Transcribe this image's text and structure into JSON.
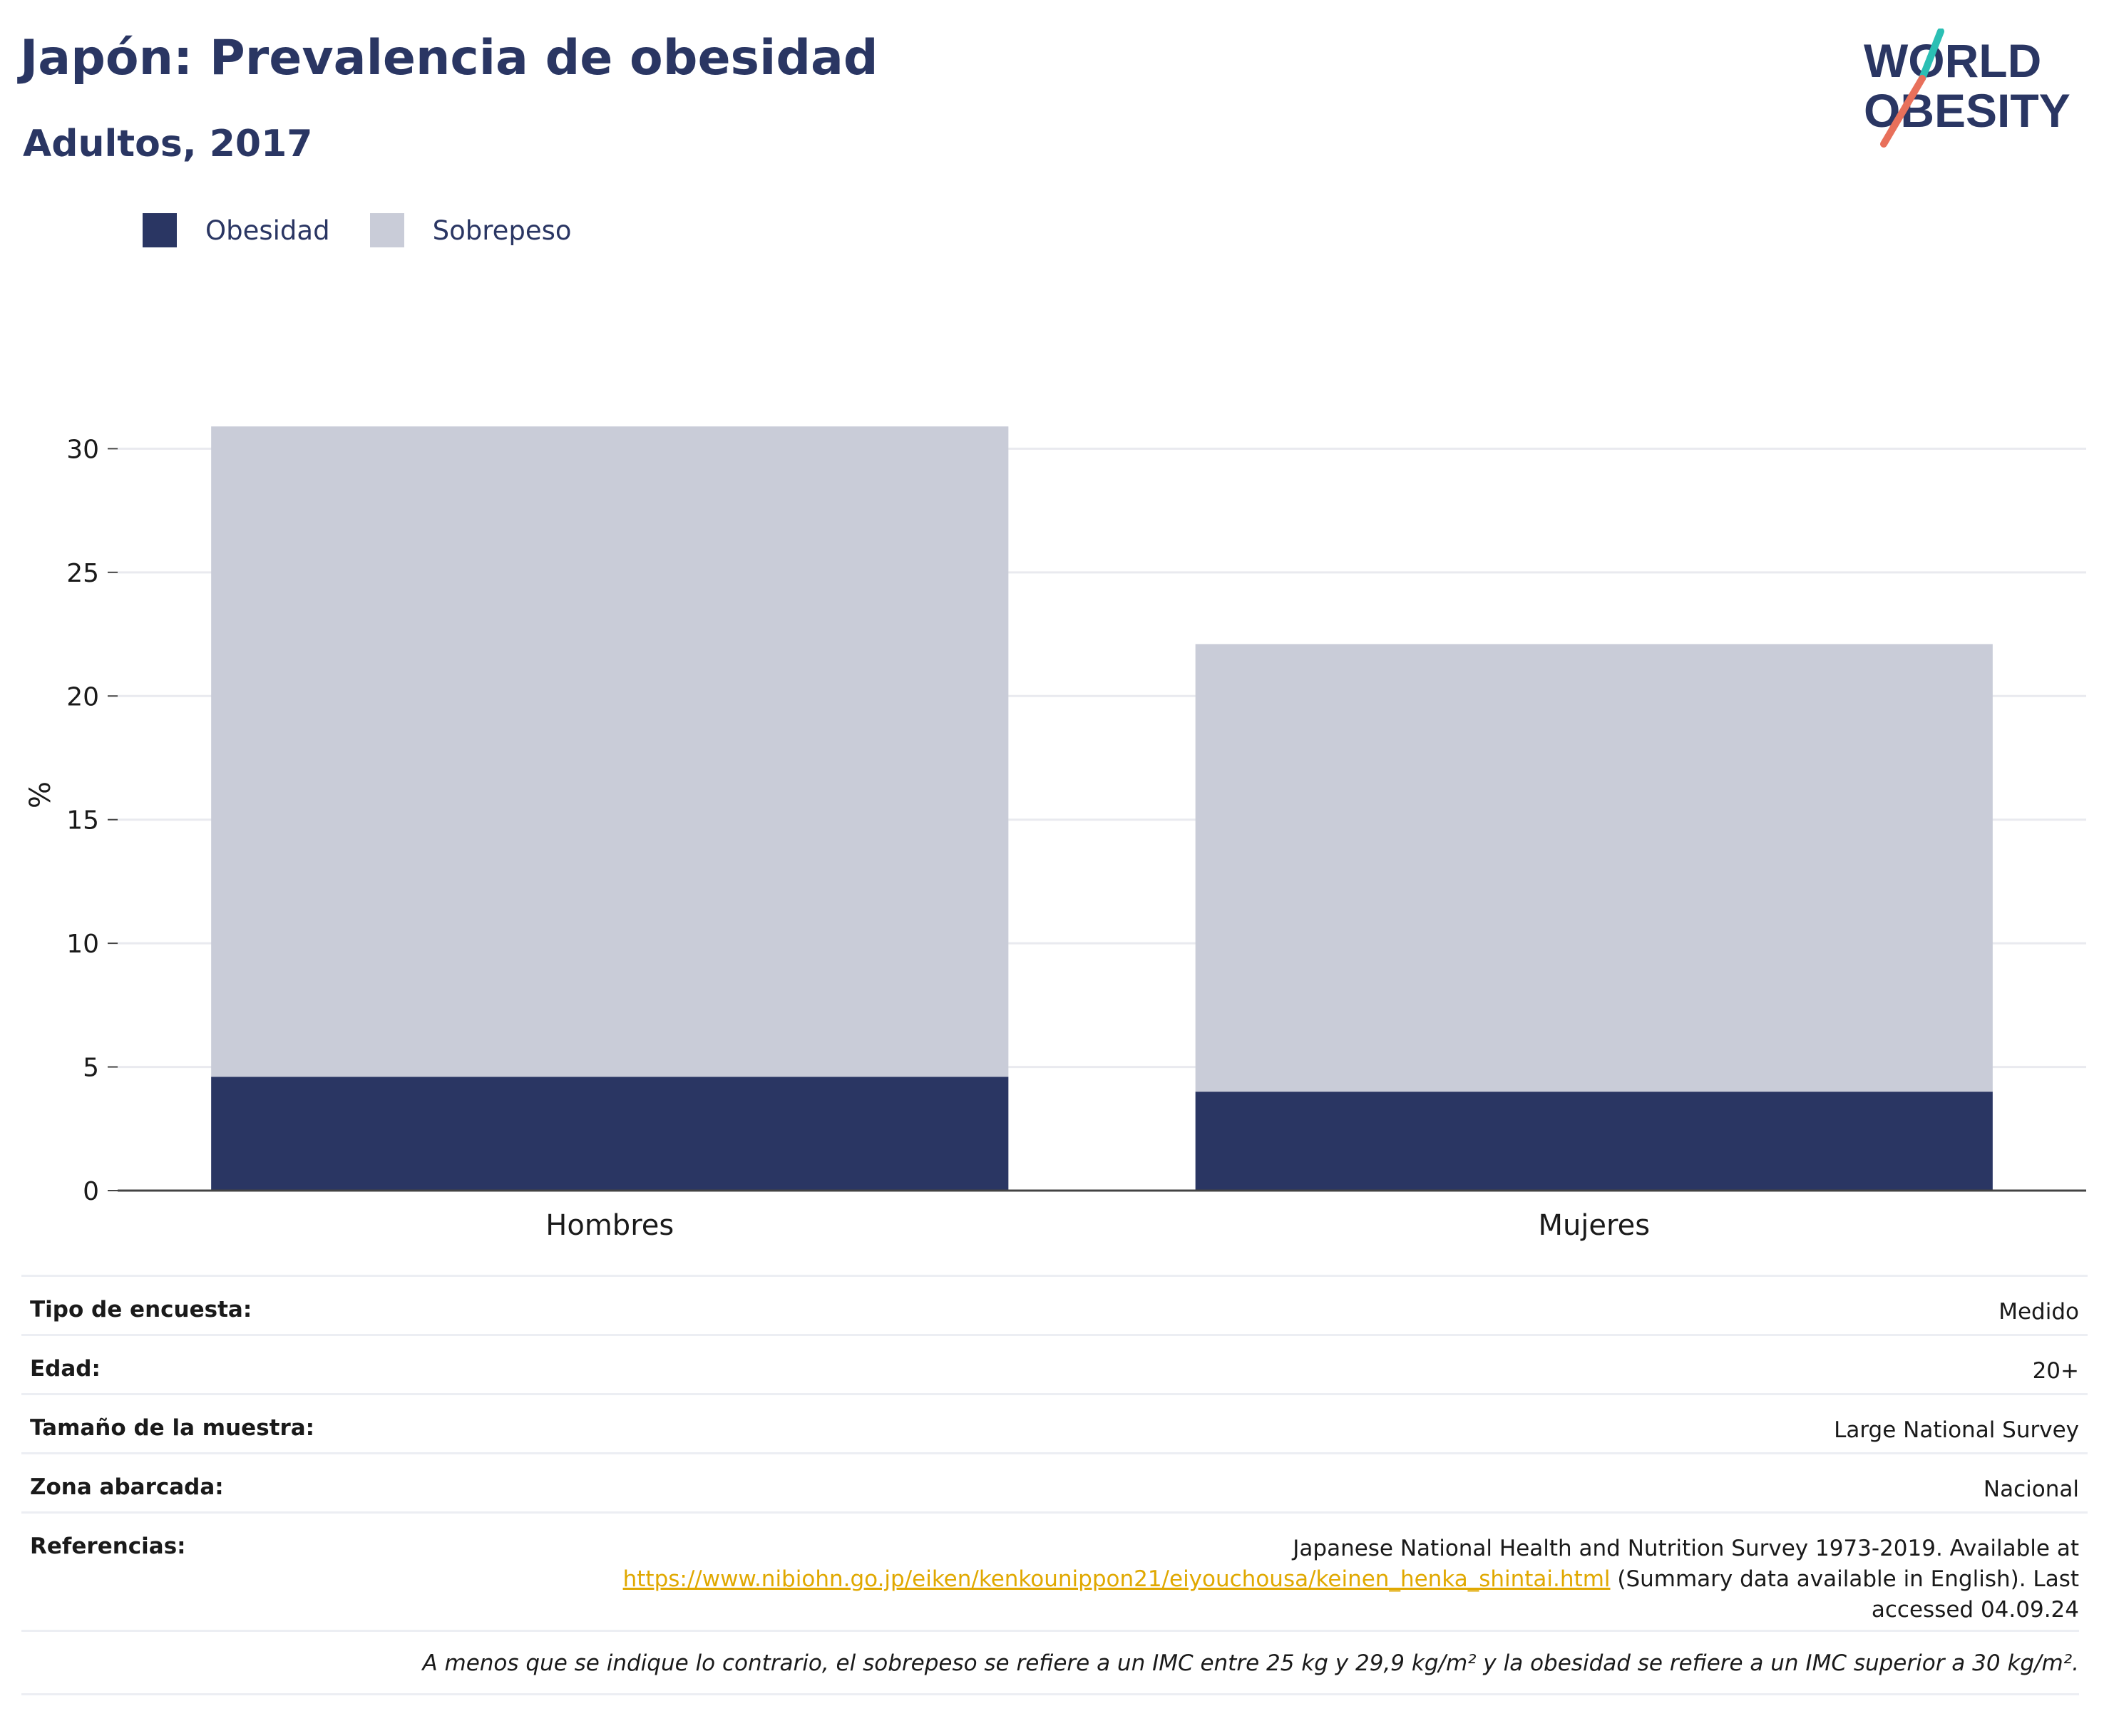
{
  "header": {
    "title": "Japón: Prevalencia de obesidad",
    "subtitle": "Adultos, 2017"
  },
  "logo": {
    "line1": "WORLD",
    "line2": "OBESITY",
    "colors": {
      "text": "#2a3663",
      "teal": "#2bbfb4",
      "coral": "#e8705b"
    }
  },
  "legend": [
    {
      "label": "Obesidad",
      "color": "#2a3663"
    },
    {
      "label": "Sobrepeso",
      "color": "#c9ccd8"
    }
  ],
  "chart_data": {
    "type": "bar",
    "stacked": true,
    "categories": [
      "Hombres",
      "Mujeres"
    ],
    "series": [
      {
        "name": "Obesidad",
        "values": [
          4.6,
          4.0
        ],
        "color": "#2a3663"
      },
      {
        "name": "Sobrepeso",
        "values": [
          26.3,
          18.1
        ],
        "color": "#c9ccd8"
      }
    ],
    "xlabel": "",
    "ylabel": "%",
    "ylim": [
      0,
      32
    ],
    "yticks": [
      0,
      5,
      10,
      15,
      20,
      25,
      30
    ],
    "grid": true,
    "legend_position": "top-left"
  },
  "info": {
    "rows": [
      {
        "key": "Tipo de encuesta:",
        "value": "Medido"
      },
      {
        "key": "Edad:",
        "value": "20+"
      },
      {
        "key": "Tamaño de la muestra:",
        "value": "Large National Survey"
      },
      {
        "key": "Zona abarcada:",
        "value": "Nacional"
      }
    ],
    "references": {
      "key": "Referencias:",
      "line1": "Japanese National Health and Nutrition Survey 1973-2019. Available at",
      "link": "https://www.nibiohn.go.jp/eiken/kenkounippon21/eiyouchousa/keinen_henka_shintai.html",
      "line2_suffix": " (Summary data available in English). Last",
      "line3": "accessed 04.09.24"
    },
    "note": "A menos que se indique lo contrario, el sobrepeso se refiere a un IMC entre 25 kg y 29,9 kg/m² y la obesidad se refiere a un IMC superior a 30 kg/m²."
  }
}
